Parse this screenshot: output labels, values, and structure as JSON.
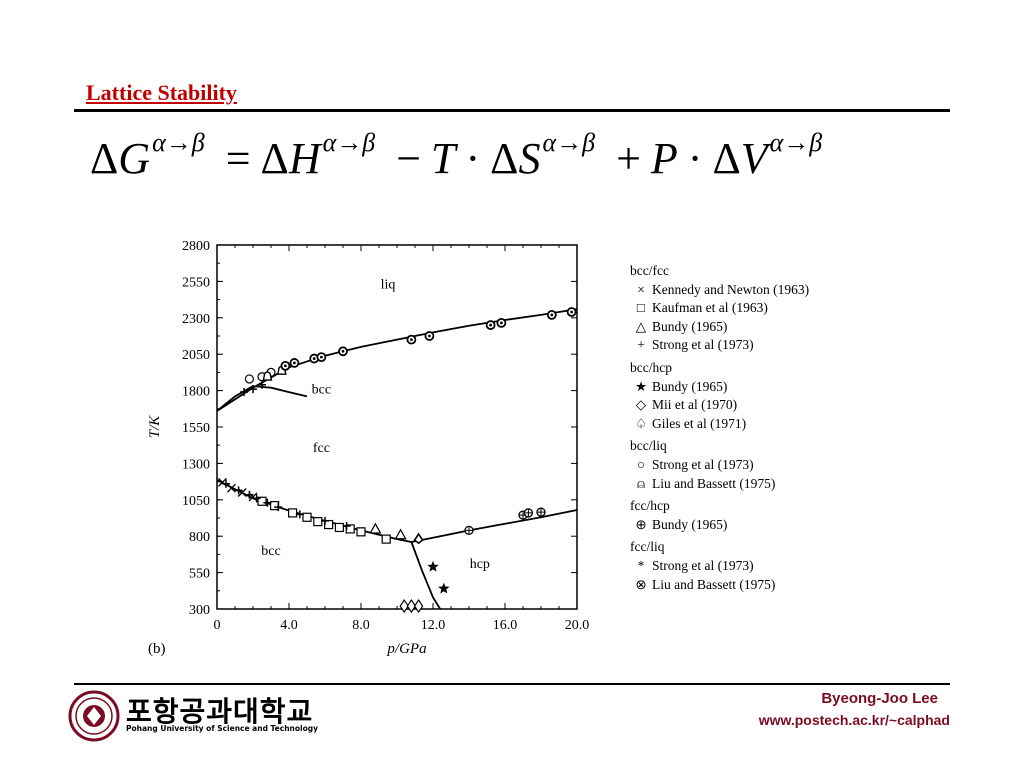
{
  "slide": {
    "title": "Lattice Stability",
    "equation": {
      "lhs": "G",
      "superscript": "α→β",
      "terms": [
        "H",
        "T",
        "S",
        "P",
        "V"
      ]
    }
  },
  "footer": {
    "university_kr": "포항공과대학교",
    "university_en": "Pohang University of Science and Technology",
    "author": "Byeong-Joo Lee",
    "url": "www.postech.ac.kr/~calphad"
  },
  "chart_data": {
    "type": "scatter",
    "panel_label": "(b)",
    "xlabel": "p/GPa",
    "ylabel": "T/K",
    "xlim": [
      0,
      20
    ],
    "ylim": [
      300,
      2800
    ],
    "xticks": [
      "0",
      "4.0",
      "8.0",
      "12.0",
      "16.0",
      "20.0"
    ],
    "yticks": [
      "2800",
      "2550",
      "2300",
      "2050",
      "1800",
      "1550",
      "1300",
      "1050",
      "800",
      "550",
      "300"
    ],
    "region_labels": [
      {
        "text": "liq",
        "x": 9.5,
        "y": 2500
      },
      {
        "text": "bcc",
        "x": 5.8,
        "y": 1780
      },
      {
        "text": "fcc",
        "x": 5.8,
        "y": 1380
      },
      {
        "text": "bcc",
        "x": 3.0,
        "y": 670
      },
      {
        "text": "hcp",
        "x": 14.6,
        "y": 580
      }
    ],
    "lines": [
      {
        "name": "liquidus",
        "points": [
          [
            0,
            1660
          ],
          [
            2,
            1820
          ],
          [
            4,
            1960
          ],
          [
            6,
            2040
          ],
          [
            8,
            2100
          ],
          [
            10,
            2150
          ],
          [
            12,
            2200
          ],
          [
            14,
            2245
          ],
          [
            16,
            2285
          ],
          [
            18,
            2320
          ],
          [
            20,
            2360
          ]
        ]
      },
      {
        "name": "bcc-fcc-high",
        "points": [
          [
            0,
            1660
          ],
          [
            1,
            1760
          ],
          [
            2,
            1830
          ],
          [
            3,
            1820
          ],
          [
            4,
            1790
          ],
          [
            5,
            1760
          ]
        ]
      },
      {
        "name": "bcc-fcc-low",
        "points": [
          [
            0,
            1185
          ],
          [
            2,
            1060
          ],
          [
            4,
            975
          ],
          [
            6,
            905
          ],
          [
            8,
            840
          ],
          [
            10,
            780
          ],
          [
            10.8,
            760
          ]
        ]
      },
      {
        "name": "fcc-hcp",
        "points": [
          [
            10.8,
            760
          ],
          [
            12,
            790
          ],
          [
            14,
            840
          ],
          [
            16,
            885
          ],
          [
            18,
            930
          ],
          [
            20,
            980
          ]
        ]
      },
      {
        "name": "bcc-hcp",
        "points": [
          [
            10.8,
            760
          ],
          [
            11.4,
            560
          ],
          [
            12,
            380
          ],
          [
            12.4,
            300
          ]
        ]
      }
    ],
    "series": [
      {
        "name": "Kennedy and Newton (1963)",
        "marker": "x",
        "group": "bcc/fcc",
        "points": [
          [
            0.3,
            1170
          ],
          [
            0.8,
            1130
          ],
          [
            1.4,
            1100
          ],
          [
            2.0,
            1070
          ]
        ]
      },
      {
        "name": "Kaufman et al (1963)",
        "marker": "square",
        "group": "bcc/fcc",
        "points": [
          [
            2.5,
            1040
          ],
          [
            3.2,
            1010
          ],
          [
            4.2,
            960
          ],
          [
            5.0,
            930
          ],
          [
            5.6,
            900
          ],
          [
            6.2,
            880
          ],
          [
            6.8,
            860
          ],
          [
            7.4,
            850
          ],
          [
            8.0,
            830
          ],
          [
            9.4,
            780
          ]
        ]
      },
      {
        "name": "Bundy (1965)",
        "marker": "triangle",
        "group": "bcc/fcc",
        "points": [
          [
            8.8,
            850
          ],
          [
            10.2,
            810
          ]
        ]
      },
      {
        "name": "Strong et al (1973)",
        "marker": "plus",
        "group": "bcc/fcc",
        "points": [
          [
            0.5,
            1160
          ],
          [
            1.2,
            1115
          ],
          [
            1.8,
            1085
          ],
          [
            2.2,
            1060
          ],
          [
            2.8,
            1030
          ],
          [
            3.4,
            1000
          ],
          [
            4.6,
            950
          ],
          [
            6.0,
            905
          ],
          [
            7.2,
            870
          ],
          [
            1.5,
            1790
          ],
          [
            2.0,
            1810
          ],
          [
            2.5,
            1840
          ]
        ]
      },
      {
        "name": "Bundy (1965)",
        "marker": "star",
        "group": "bcc/hcp",
        "points": [
          [
            12.0,
            590
          ],
          [
            12.6,
            440
          ]
        ]
      },
      {
        "name": "Mii et al (1970)",
        "marker": "diamond",
        "group": "bcc/hcp",
        "points": [
          [
            10.4,
            320
          ],
          [
            10.8,
            320
          ],
          [
            11.2,
            320
          ]
        ]
      },
      {
        "name": "Giles et al (1971)",
        "marker": "spade",
        "group": "bcc/hcp",
        "points": [
          [
            11.2,
            780
          ]
        ]
      },
      {
        "name": "Strong et al (1973)",
        "marker": "circle",
        "group": "bcc/liq",
        "points": [
          [
            1.8,
            1880
          ],
          [
            2.5,
            1895
          ],
          [
            3.0,
            1925
          ]
        ]
      },
      {
        "name": "Liu and Bassett (1975)",
        "marker": "bell",
        "group": "bcc/liq",
        "points": [
          [
            2.8,
            1900
          ],
          [
            3.6,
            1940
          ]
        ]
      },
      {
        "name": "Bundy (1965)",
        "marker": "circle-plus",
        "group": "fcc/hcp",
        "points": [
          [
            14.0,
            840
          ],
          [
            17.0,
            945
          ],
          [
            17.3,
            960
          ],
          [
            18.0,
            965
          ]
        ]
      },
      {
        "name": "Strong et al (1973)",
        "marker": "asterisk",
        "group": "fcc/liq",
        "points": []
      },
      {
        "name": "Liu and Bassett (1975)",
        "marker": "circle-cross",
        "group": "fcc/liq",
        "points": [
          [
            3.8,
            1970
          ],
          [
            4.3,
            1990
          ],
          [
            5.4,
            2020
          ],
          [
            5.8,
            2030
          ],
          [
            7.0,
            2070
          ],
          [
            10.8,
            2150
          ],
          [
            11.8,
            2175
          ],
          [
            15.2,
            2250
          ],
          [
            15.8,
            2265
          ],
          [
            18.6,
            2320
          ],
          [
            19.7,
            2340
          ]
        ]
      }
    ]
  },
  "legend": {
    "groups": [
      {
        "header": "bcc/fcc",
        "items": [
          {
            "symbol": "×",
            "label": "Kennedy and Newton (1963)"
          },
          {
            "symbol": "□",
            "label": "Kaufman et al (1963)"
          },
          {
            "symbol": "△",
            "label": "Bundy (1965)"
          },
          {
            "symbol": "+",
            "label": "Strong et al (1973)"
          }
        ]
      },
      {
        "header": "bcc/hcp",
        "items": [
          {
            "symbol": "★",
            "label": "Bundy (1965)"
          },
          {
            "symbol": "◇",
            "label": "Mii et al (1970)"
          },
          {
            "symbol": "♤",
            "label": "Giles et al (1971)"
          }
        ]
      },
      {
        "header": "bcc/liq",
        "items": [
          {
            "symbol": "○",
            "label": "Strong et al (1973)"
          },
          {
            "symbol": "⍝",
            "label": "Liu and Bassett (1975)"
          }
        ]
      },
      {
        "header": "fcc/hcp",
        "items": [
          {
            "symbol": "⊕",
            "label": "Bundy (1965)"
          }
        ]
      },
      {
        "header": "fcc/liq",
        "items": [
          {
            "symbol": "*",
            "label": "Strong et al (1973)"
          },
          {
            "symbol": "⊗",
            "label": "Liu and Bassett (1975)"
          }
        ]
      }
    ]
  }
}
